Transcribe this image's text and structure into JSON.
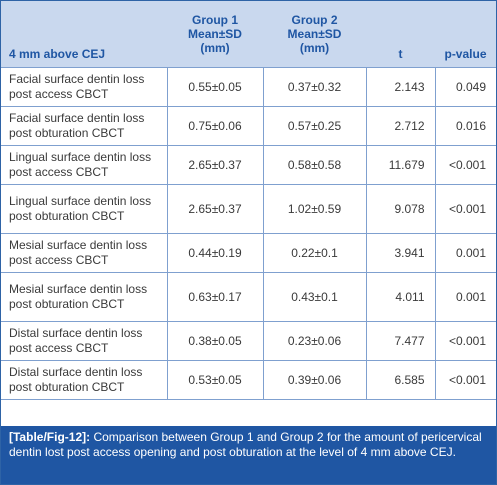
{
  "table": {
    "headers": [
      "4 mm above CEJ",
      "Group 1 Mean±SD (mm)",
      "Group 2 Mean±SD (mm)",
      "t",
      "p-value"
    ],
    "header_lines": {
      "g1": [
        "Group 1",
        "Mean±SD",
        "(mm)"
      ],
      "g2": [
        "Group 2",
        "Mean±SD",
        "(mm)"
      ]
    },
    "rows": [
      {
        "label": "Facial surface dentin loss post access CBCT",
        "g1": "0.55±0.05",
        "g2": "0.37±0.32",
        "t": "2.143",
        "p": "0.049"
      },
      {
        "label": "Facial surface dentin loss post obturation CBCT",
        "g1": "0.75±0.06",
        "g2": "0.57±0.25",
        "t": "2.712",
        "p": "0.016"
      },
      {
        "label": "Lingual surface dentin loss post access CBCT",
        "g1": "2.65±0.37",
        "g2": "0.58±0.58",
        "t": "11.679",
        "p": "<0.001"
      },
      {
        "label": "Lingual surface dentin loss post obturation CBCT",
        "g1": "2.65±0.37",
        "g2": "1.02±0.59",
        "t": "9.078",
        "p": "<0.001"
      },
      {
        "label": "Mesial surface dentin loss post access CBCT",
        "g1": "0.44±0.19",
        "g2": "0.22±0.1",
        "t": "3.941",
        "p": "0.001"
      },
      {
        "label": "Mesial surface dentin loss post obturation CBCT",
        "g1": "0.63±0.17",
        "g2": "0.43±0.1",
        "t": "4.011",
        "p": "0.001"
      },
      {
        "label": "Distal surface dentin loss post access CBCT",
        "g1": "0.38±0.05",
        "g2": "0.23±0.06",
        "t": "7.477",
        "p": "<0.001"
      },
      {
        "label": "Distal surface dentin loss post obturation CBCT",
        "g1": "0.53±0.05",
        "g2": "0.39±0.06",
        "t": "6.585",
        "p": "<0.001"
      }
    ]
  },
  "caption": {
    "tag": "[Table/Fig-12]:",
    "text": "Comparison between Group 1 and Group 2 for the amount of pericervical dentin lost post access opening and post obturation at the level of 4 mm above CEJ."
  },
  "colors": {
    "header_bg": "#c9d8ee",
    "header_text": "#1f56a3",
    "caption_bg": "#1f56a3",
    "rule": "#7fa0cf"
  }
}
